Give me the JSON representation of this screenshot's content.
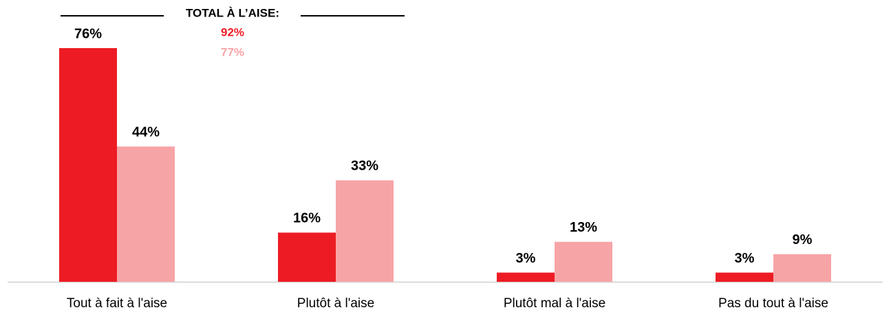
{
  "chart_data": {
    "type": "bar",
    "categories": [
      "Tout à fait à l'aise",
      "Plutôt à l'aise",
      "Plutôt mal à l'aise",
      "Pas du tout à l'aise"
    ],
    "series": [
      {
        "color": "#ed1c24",
        "values": [
          76,
          16,
          3,
          3
        ],
        "value_labels": [
          "76%",
          "16%",
          "3%",
          "3%"
        ]
      },
      {
        "color": "#f7a4a7",
        "values": [
          44,
          33,
          13,
          9
        ],
        "value_labels": [
          "44%",
          "33%",
          "13%",
          "9%"
        ]
      }
    ],
    "annotation": {
      "title": "TOTAL À L’AISE:",
      "totals": [
        "92%",
        "77%"
      ]
    }
  }
}
